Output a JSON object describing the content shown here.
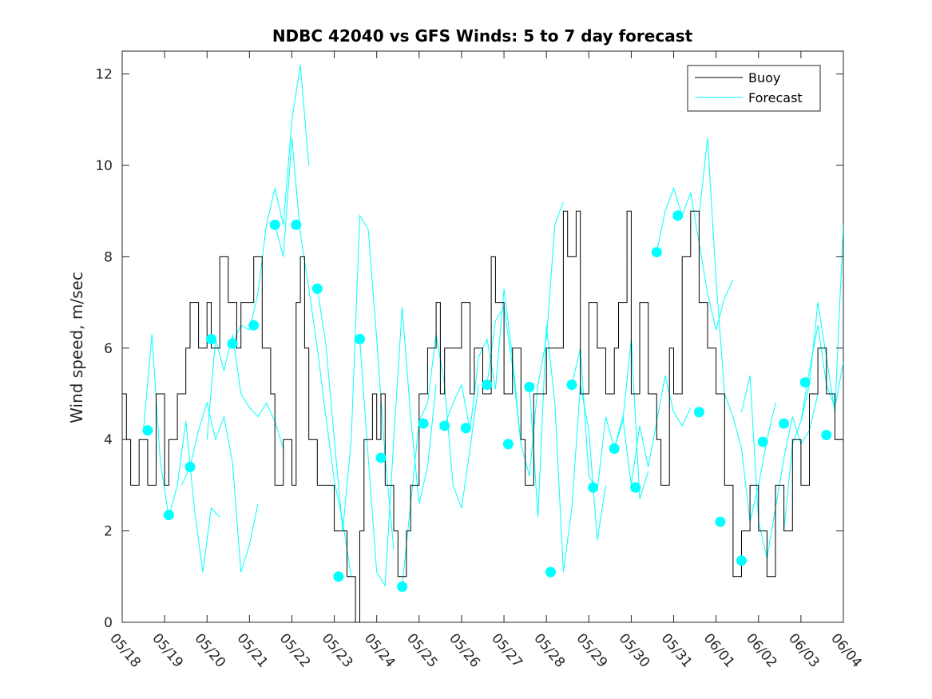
{
  "chart_data": {
    "type": "line",
    "title": "NDBC 42040 vs GFS Winds: 5 to 7 day forecast",
    "xlabel": "",
    "ylabel": "Wind speed, m/sec",
    "xlim": [
      "05/18 00:00",
      "06/04 00:00"
    ],
    "ylim": [
      0,
      12.5
    ],
    "yticks": [
      0,
      2,
      4,
      6,
      8,
      10,
      12
    ],
    "xticks": [
      "05/18",
      "05/19",
      "05/20",
      "05/21",
      "05/22",
      "05/23",
      "05/24",
      "05/25",
      "05/26",
      "05/27",
      "05/28",
      "05/29",
      "05/30",
      "05/31",
      "06/01",
      "06/02",
      "06/03",
      "06/04"
    ],
    "grid": false,
    "legend_position": "top-right",
    "colors": {
      "buoy": "#000000",
      "forecast": "#00ffff",
      "axes": "#262626"
    },
    "buoy": {
      "name": "Buoy",
      "x_days": [
        0,
        0.1,
        0.2,
        0.4,
        0.6,
        0.8,
        1.0,
        1.1,
        1.3,
        1.5,
        1.6,
        1.8,
        2.0,
        2.1,
        2.3,
        2.5,
        2.7,
        2.8,
        3.0,
        3.1,
        3.3,
        3.5,
        3.6,
        3.8,
        4.0,
        4.1,
        4.2,
        4.3,
        4.4,
        4.6,
        4.8,
        5.0,
        5.2,
        5.3,
        5.5,
        5.6,
        5.7,
        5.9,
        6.0,
        6.1,
        6.2,
        6.4,
        6.5,
        6.7,
        6.8,
        7.0,
        7.2,
        7.4,
        7.5,
        7.6,
        7.8,
        8.0,
        8.2,
        8.3,
        8.5,
        8.7,
        8.8,
        9.0,
        9.2,
        9.4,
        9.5,
        9.7,
        9.8,
        10.0,
        10.2,
        10.4,
        10.5,
        10.7,
        10.8,
        11.0,
        11.2,
        11.4,
        11.6,
        11.7,
        11.9,
        12.0,
        12.2,
        12.4,
        12.6,
        12.7,
        12.9,
        13.0,
        13.2,
        13.4,
        13.6,
        13.8,
        14.0,
        14.2,
        14.4,
        14.6,
        14.8,
        15.0,
        15.2,
        15.4,
        15.6,
        15.8,
        16.0,
        16.2,
        16.4,
        16.6,
        16.8,
        17.0
      ],
      "y": [
        5,
        4,
        3,
        4,
        3,
        5,
        3,
        4,
        5,
        6,
        7,
        6,
        7,
        6,
        8,
        7,
        6,
        7,
        7,
        8,
        6,
        5,
        3,
        4,
        3,
        7,
        8,
        6,
        4,
        3,
        3,
        2,
        2,
        1,
        0,
        2,
        4,
        5,
        4,
        5,
        3,
        2,
        1,
        2,
        3,
        5,
        6,
        7,
        5,
        6,
        6,
        7,
        5,
        6,
        5,
        8,
        7,
        5,
        6,
        4,
        3,
        5,
        5,
        6,
        6,
        9,
        8,
        9,
        5,
        7,
        6,
        5,
        6,
        7,
        9,
        5,
        7,
        5,
        4,
        3,
        6,
        5,
        8,
        9,
        7,
        6,
        5,
        3,
        1,
        2,
        3,
        2,
        1,
        3,
        2,
        4,
        3,
        5,
        6,
        5,
        4,
        3
      ]
    },
    "forecast": {
      "name": "Forecast",
      "series": [
        {
          "x_days": [
            0.5,
            0.7,
            0.9,
            1.1,
            1.3,
            1.5,
            1.7,
            1.9,
            2.1,
            2.3
          ],
          "y": [
            4.2,
            6.3,
            3.5,
            2.3,
            3.0,
            4.4,
            2.5,
            1.1,
            2.5,
            2.3
          ]
        },
        {
          "x_days": [
            1.4,
            1.6,
            1.8,
            2.0,
            2.2,
            2.4,
            2.6,
            2.8,
            3.0,
            3.2
          ],
          "y": [
            3.0,
            3.4,
            4.2,
            4.8,
            4.0,
            4.5,
            3.5,
            1.1,
            1.7,
            2.6
          ]
        },
        {
          "x_days": [
            2.0,
            2.2,
            2.4,
            2.6,
            2.8,
            3.0,
            3.2,
            3.4,
            3.6,
            3.8
          ],
          "y": [
            4.0,
            6.2,
            5.5,
            6.3,
            5.0,
            4.7,
            4.5,
            4.8,
            4.4,
            3.8
          ]
        },
        {
          "x_days": [
            2.6,
            2.8,
            3.0,
            3.2,
            3.4,
            3.6,
            3.8,
            4.0,
            4.2,
            4.4
          ],
          "y": [
            6.1,
            6.5,
            6.4,
            7.2,
            8.7,
            9.5,
            8.7,
            11.0,
            12.2,
            10.0
          ]
        },
        {
          "x_days": [
            3.6,
            3.8,
            4.0,
            4.2,
            4.4,
            4.6,
            4.8,
            5.0,
            5.2,
            5.4
          ],
          "y": [
            8.7,
            8.0,
            10.6,
            8.5,
            7.3,
            6.0,
            4.5,
            3.1,
            2.2,
            1.0
          ]
        },
        {
          "x_days": [
            4.6,
            4.8,
            5.0,
            5.2,
            5.4,
            5.6,
            5.8,
            6.0,
            6.2,
            6.4
          ],
          "y": [
            7.3,
            6.1,
            4.0,
            2.0,
            4.0,
            8.9,
            8.6,
            6.2,
            3.6,
            1.6
          ]
        },
        {
          "x_days": [
            5.6,
            5.8,
            6.0,
            6.2,
            6.4,
            6.6,
            6.8,
            7.0,
            7.2,
            7.4
          ],
          "y": [
            6.2,
            3.6,
            1.1,
            0.8,
            4.0,
            6.9,
            4.5,
            2.6,
            3.4,
            5.2
          ]
        },
        {
          "x_days": [
            6.6,
            6.8,
            7.0,
            7.2,
            7.4,
            7.6,
            7.8,
            8.0,
            8.2,
            8.4
          ],
          "y": [
            0.8,
            2.6,
            4.4,
            4.8,
            6.3,
            5.2,
            3.0,
            2.5,
            3.8,
            5.2
          ]
        },
        {
          "x_days": [
            7.6,
            7.8,
            8.0,
            8.2,
            8.4,
            8.6,
            8.8,
            9.0,
            9.2,
            9.4
          ],
          "y": [
            4.3,
            4.8,
            5.2,
            4.2,
            5.8,
            6.2,
            5.1,
            7.3,
            5.8,
            3.9
          ]
        },
        {
          "x_days": [
            8.6,
            8.8,
            9.0,
            9.2,
            9.4,
            9.6,
            9.8,
            10.0,
            10.2,
            10.4
          ],
          "y": [
            5.2,
            6.6,
            6.9,
            5.6,
            3.9,
            3.2,
            5.2,
            6.2,
            8.7,
            9.2
          ]
        },
        {
          "x_days": [
            9.6,
            9.8,
            10.0,
            10.2,
            10.4,
            10.6,
            10.8,
            11.0,
            11.2,
            11.4
          ],
          "y": [
            5.2,
            2.3,
            6.5,
            4.8,
            1.1,
            2.5,
            5.2,
            4.2,
            1.8,
            3.0
          ]
        },
        {
          "x_days": [
            10.6,
            10.8,
            11.0,
            11.2,
            11.4,
            11.6,
            11.8,
            12.0,
            12.2,
            12.4
          ],
          "y": [
            5.2,
            6.0,
            3.2,
            2.9,
            4.5,
            3.8,
            4.4,
            6.2,
            2.7,
            3.3
          ]
        },
        {
          "x_days": [
            11.6,
            11.8,
            12.0,
            12.2,
            12.4,
            12.6,
            12.8,
            13.0,
            13.2,
            13.4
          ],
          "y": [
            3.8,
            4.5,
            3.0,
            4.3,
            3.4,
            4.4,
            5.4,
            4.6,
            4.3,
            4.7
          ]
        },
        {
          "x_days": [
            12.6,
            12.8,
            13.0,
            13.2,
            13.4,
            13.6,
            13.8,
            14.0,
            14.2,
            14.4
          ],
          "y": [
            8.1,
            9.0,
            9.5,
            8.9,
            9.4,
            8.3,
            7.2,
            6.4,
            7.1,
            7.5
          ]
        },
        {
          "x_days": [
            13.6,
            13.8,
            14.0,
            14.2,
            14.4,
            14.6,
            14.8,
            15.0,
            15.2,
            15.4
          ],
          "y": [
            8.9,
            10.6,
            7.5,
            5.0,
            4.5,
            3.8,
            2.2,
            3.0,
            4.0,
            4.8
          ]
        },
        {
          "x_days": [
            14.6,
            14.8,
            15.0,
            15.2,
            15.4,
            15.6,
            15.8,
            16.0,
            16.2,
            16.4
          ],
          "y": [
            4.6,
            5.4,
            2.2,
            1.4,
            2.5,
            3.6,
            4.5,
            3.9,
            4.2,
            5.0
          ]
        },
        {
          "x_days": [
            15.6,
            15.8,
            16.0,
            16.2,
            16.4,
            16.6,
            16.8,
            17.0
          ],
          "y": [
            2.0,
            3.9,
            4.4,
            5.5,
            6.5,
            5.2,
            4.7,
            5.7
          ]
        },
        {
          "x_days": [
            16.0,
            16.2,
            16.4,
            16.6,
            16.8,
            17.0
          ],
          "y": [
            4.4,
            5.2,
            7.0,
            5.8,
            4.6,
            8.7
          ]
        }
      ],
      "markers": {
        "x_days": [
          0.6,
          1.1,
          1.6,
          2.1,
          2.6,
          3.1,
          3.6,
          4.1,
          4.6,
          5.1,
          5.6,
          6.1,
          6.6,
          7.1,
          7.6,
          8.1,
          8.6,
          9.1,
          9.6,
          10.1,
          10.6,
          11.1,
          11.6,
          12.1,
          12.6,
          13.1,
          13.6,
          14.1,
          14.6,
          15.1,
          15.6,
          16.1,
          16.6
        ],
        "y": [
          4.2,
          2.35,
          3.4,
          6.2,
          6.1,
          6.5,
          8.7,
          8.7,
          7.3,
          1.0,
          6.2,
          3.6,
          0.78,
          4.35,
          4.3,
          4.25,
          5.2,
          3.9,
          5.15,
          1.1,
          5.2,
          2.95,
          3.8,
          2.95,
          8.1,
          8.9,
          4.6,
          2.2,
          1.35,
          3.95,
          4.35,
          5.25,
          4.1
        ]
      }
    }
  },
  "legend": {
    "entries": [
      "Buoy",
      "Forecast"
    ]
  }
}
